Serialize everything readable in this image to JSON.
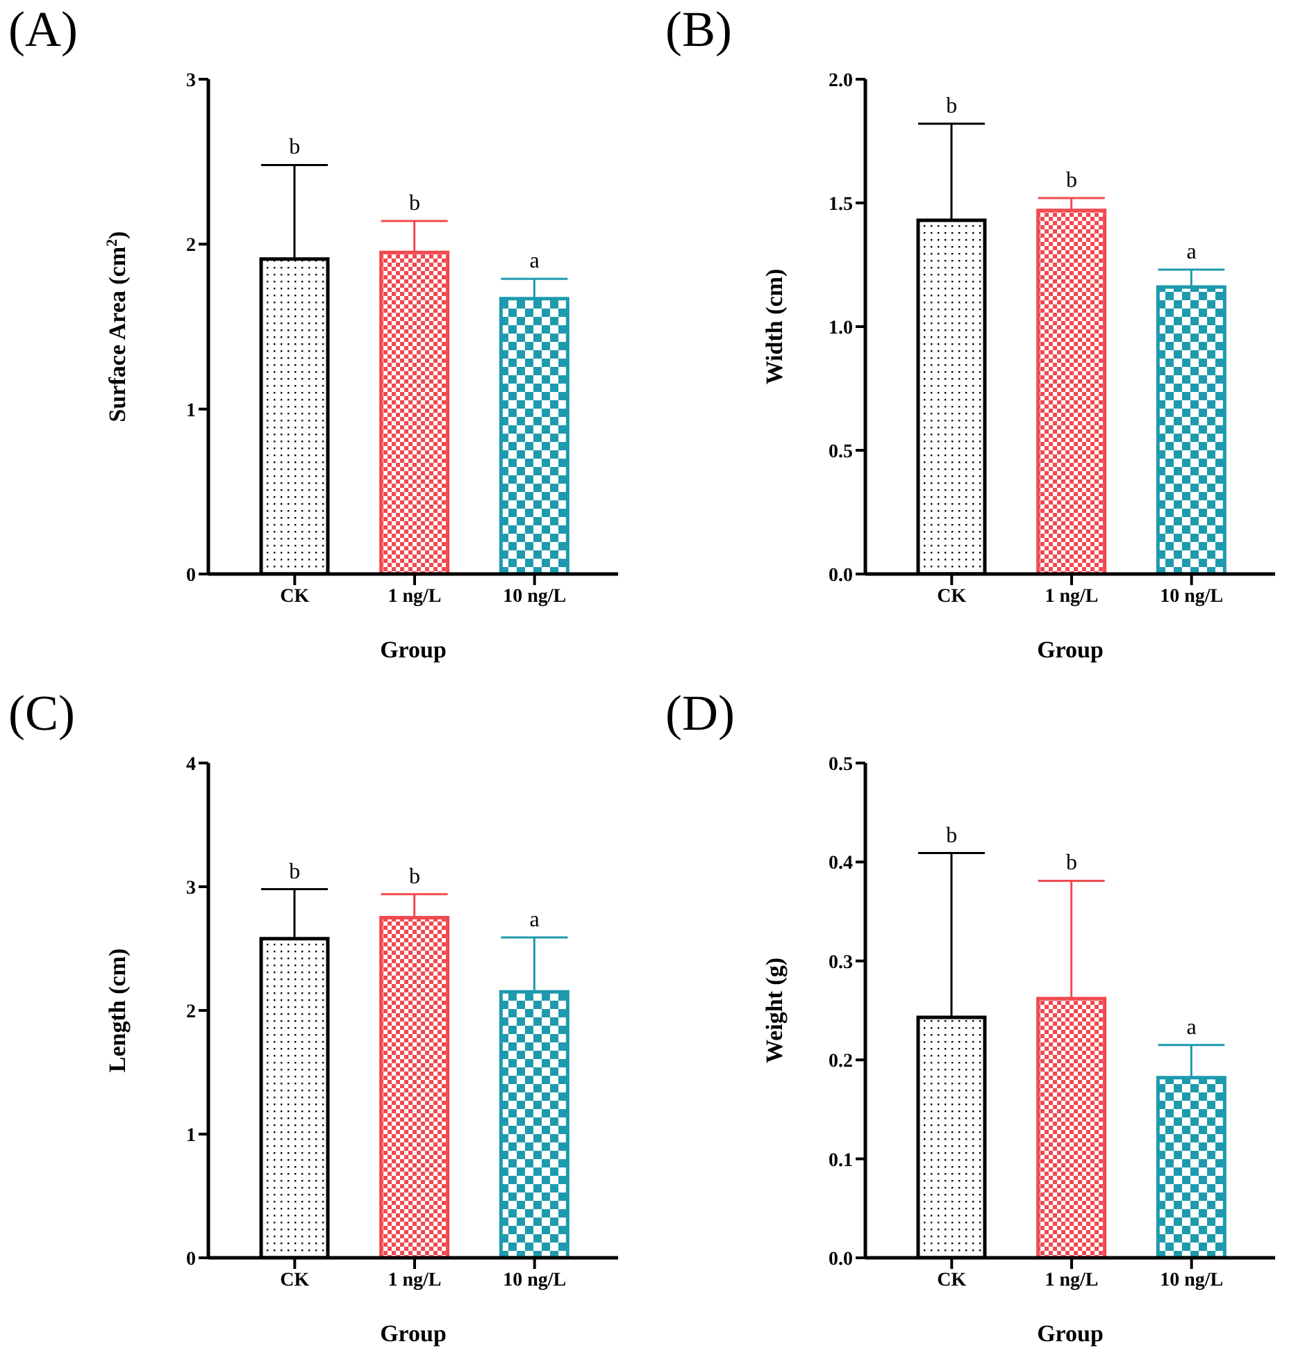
{
  "chart_data": [
    {
      "type": "bar",
      "title": "(A)",
      "xlabel": "Group",
      "ylabel": "Surface Area (cm$^{2}$)",
      "categories": [
        "CK",
        "1 ng/L",
        "10 ng/L"
      ],
      "values": [
        1.91,
        1.95,
        1.67
      ],
      "errors": [
        [
          1.91,
          2.48
        ],
        [
          1.95,
          2.14
        ],
        [
          1.67,
          1.79
        ]
      ],
      "colors": [
        "#000000",
        "#f04a50",
        "#1e9aae"
      ],
      "ylim": [
        0,
        3
      ],
      "yticks": [
        0,
        1,
        2,
        3
      ],
      "grid": false,
      "annotations": [
        {
          "text": "b",
          "x": "CK",
          "y": 2.48
        },
        {
          "text": "b",
          "x": "1 ng/L",
          "y": 2.14
        },
        {
          "text": "a",
          "x": "10 ng/L",
          "y": 1.79
        }
      ]
    },
    {
      "type": "bar",
      "title": "(B)",
      "xlabel": "Group",
      "ylabel": "Width (cm)",
      "categories": [
        "CK",
        "1 ng/L",
        "10 ng/L"
      ],
      "values": [
        1.43,
        1.47,
        1.16
      ],
      "errors": [
        [
          1.43,
          1.82
        ],
        [
          1.47,
          1.52
        ],
        [
          1.16,
          1.23
        ]
      ],
      "colors": [
        "#000000",
        "#f04a50",
        "#1e9aae"
      ],
      "ylim": [
        0,
        2
      ],
      "yticks": [
        {
          "value": 0,
          "label": "0.0"
        },
        0.5,
        {
          "value": 1,
          "label": "1.0"
        },
        1.5,
        {
          "value": 2,
          "label": "2.0"
        }
      ],
      "grid": false,
      "annotations": [
        {
          "text": "b",
          "x": "CK",
          "y": 1.82
        },
        {
          "text": "b",
          "x": "1 ng/L",
          "y": 1.52
        },
        {
          "text": "a",
          "x": "10 ng/L",
          "y": 1.23
        }
      ]
    },
    {
      "type": "bar",
      "title": "(C)",
      "xlabel": "Group",
      "ylabel": "Length (cm)",
      "categories": [
        "CK",
        "1 ng/L",
        "10 ng/L"
      ],
      "values": [
        2.58,
        2.75,
        2.15
      ],
      "errors": [
        [
          2.58,
          2.98
        ],
        [
          2.75,
          2.94
        ],
        [
          2.15,
          2.59
        ]
      ],
      "colors": [
        "#000000",
        "#f04a50",
        "#1e9aae"
      ],
      "ylim": [
        0,
        4
      ],
      "yticks": [
        0,
        1,
        2,
        3,
        4
      ],
      "grid": false,
      "annotations": [
        {
          "text": "b",
          "x": "CK",
          "y": 2.98
        },
        {
          "text": "b",
          "x": "1 ng/L",
          "y": 2.94
        },
        {
          "text": "a",
          "x": "10 ng/L",
          "y": 2.59
        }
      ]
    },
    {
      "type": "bar",
      "title": "(D)",
      "xlabel": "Group",
      "ylabel": "Weight (g)",
      "categories": [
        "CK",
        "1 ng/L",
        "10 ng/L"
      ],
      "values": [
        0.243,
        0.262,
        0.182
      ],
      "errors": [
        [
          0.243,
          0.409
        ],
        [
          0.262,
          0.381
        ],
        [
          0.182,
          0.215
        ]
      ],
      "colors": [
        "#000000",
        "#f04a50",
        "#1e9aae"
      ],
      "ylim": [
        0,
        0.5
      ],
      "yticks": [
        {
          "value": 0,
          "label": "0.0"
        },
        0.1,
        0.2,
        0.3,
        0.4,
        0.5
      ],
      "grid": false,
      "annotations": [
        {
          "text": "b",
          "x": "CK",
          "y": 0.409
        },
        {
          "text": "b",
          "x": "1 ng/L",
          "y": 0.381
        },
        {
          "text": "a",
          "x": "10 ng/L",
          "y": 0.215
        }
      ]
    }
  ]
}
